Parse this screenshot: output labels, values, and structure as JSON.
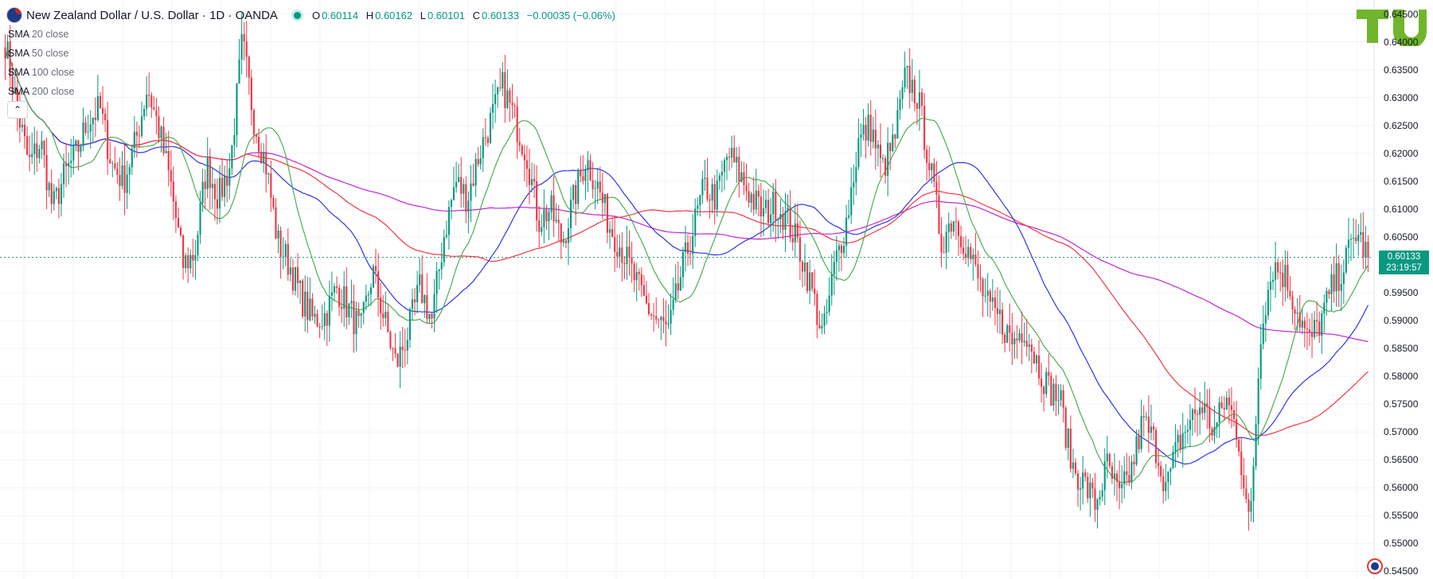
{
  "header": {
    "symbol": "New Zealand Dollar / U.S. Dollar · 1D · OANDA",
    "ohlc": {
      "o_label": "O",
      "o": "0.60114",
      "h_label": "H",
      "h": "0.60162",
      "l_label": "L",
      "l": "0.60101",
      "c_label": "C",
      "c": "0.60133",
      "change": "−0.00035 (−0.06%)"
    }
  },
  "indicators": [
    {
      "label": "SMA",
      "params": "20 close"
    },
    {
      "label": "SMA",
      "params": "50 close"
    },
    {
      "label": "SMA",
      "params": "100 close"
    },
    {
      "label": "SMA",
      "params": "200 close"
    }
  ],
  "collapse_icon": "chevron-up-icon",
  "price_label": {
    "price": "0.60133",
    "countdown": "23:19:57"
  },
  "y_ticks": [
    "0.64500",
    "0.64000",
    "0.63500",
    "0.63000",
    "0.62500",
    "0.62000",
    "0.61500",
    "0.61000",
    "0.60500",
    "0.59500",
    "0.59000",
    "0.58500",
    "0.58000",
    "0.57500",
    "0.57000",
    "0.56500",
    "0.56000",
    "0.55500",
    "0.55000",
    "0.54500"
  ],
  "colors": {
    "up": "#089981",
    "down": "#f23645",
    "sma20": "#4caf50",
    "sma50": "#2f35e6",
    "sma100": "#f23645",
    "sma200": "#c026d3",
    "brand": "#70b52b"
  },
  "chart_data": {
    "type": "candlestick",
    "title": "New Zealand Dollar / U.S. Dollar · 1D · OANDA",
    "ylim": [
      0.5445,
      0.6455
    ],
    "last_price": 0.60133,
    "close_path": [
      0.64,
      0.628,
      0.618,
      0.622,
      0.61,
      0.616,
      0.62,
      0.626,
      0.628,
      0.618,
      0.615,
      0.622,
      0.632,
      0.624,
      0.614,
      0.6,
      0.602,
      0.618,
      0.612,
      0.618,
      0.64,
      0.626,
      0.618,
      0.604,
      0.6,
      0.594,
      0.59,
      0.591,
      0.596,
      0.592,
      0.588,
      0.599,
      0.59,
      0.582,
      0.588,
      0.596,
      0.59,
      0.605,
      0.615,
      0.612,
      0.62,
      0.626,
      0.632,
      0.626,
      0.62,
      0.608,
      0.61,
      0.604,
      0.612,
      0.619,
      0.614,
      0.607,
      0.603,
      0.598,
      0.593,
      0.59,
      0.588,
      0.598,
      0.606,
      0.614,
      0.612,
      0.62,
      0.616,
      0.612,
      0.609,
      0.611,
      0.608,
      0.603,
      0.596,
      0.587,
      0.6,
      0.608,
      0.622,
      0.625,
      0.617,
      0.622,
      0.634,
      0.63,
      0.618,
      0.604,
      0.609,
      0.604,
      0.598,
      0.592,
      0.59,
      0.586,
      0.589,
      0.583,
      0.578,
      0.576,
      0.564,
      0.561,
      0.557,
      0.564,
      0.558,
      0.563,
      0.572,
      0.568,
      0.56,
      0.568,
      0.572,
      0.575,
      0.57,
      0.576,
      0.57,
      0.552,
      0.59,
      0.6,
      0.598,
      0.592,
      0.586,
      0.59,
      0.596,
      0.6,
      0.606,
      0.6013
    ]
  }
}
